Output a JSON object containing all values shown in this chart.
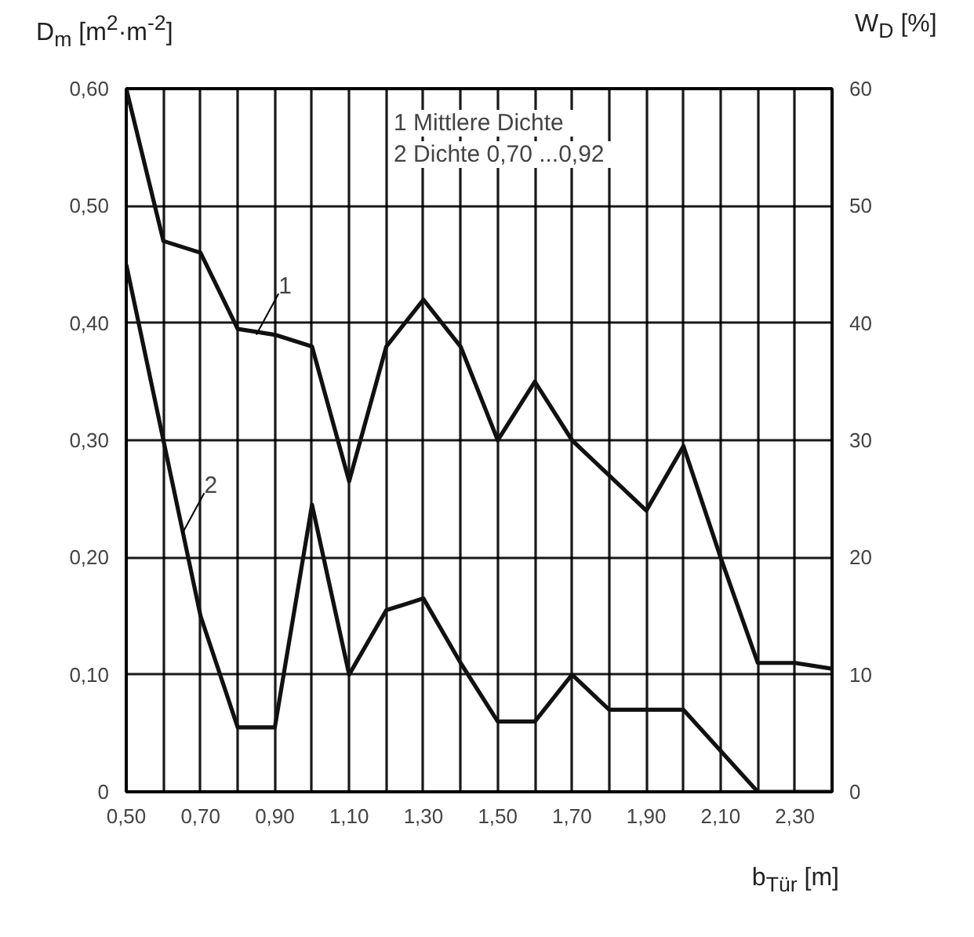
{
  "chart_data": {
    "type": "line",
    "x": [
      0.5,
      0.6,
      0.7,
      0.8,
      0.9,
      1.0,
      1.1,
      1.2,
      1.3,
      1.4,
      1.5,
      1.6,
      1.7,
      1.8,
      1.9,
      2.0,
      2.1,
      2.2,
      2.3,
      2.4
    ],
    "series": [
      {
        "color": "#111111",
        "values": [
          0.6,
          0.47,
          0.46,
          0.395,
          0.39,
          0.38,
          0.265,
          0.38,
          0.42,
          0.38,
          0.3,
          0.35,
          0.3,
          0.27,
          0.24,
          0.295,
          0.2,
          0.11,
          0.11,
          0.105
        ]
      },
      {
        "color": "#111111",
        "values": [
          0.45,
          0.3,
          0.15,
          0.055,
          0.055,
          0.245,
          0.1,
          0.155,
          0.165,
          0.11,
          0.06,
          0.06,
          0.1,
          0.07,
          0.07,
          0.07,
          0.035,
          0.0,
          0.0,
          0.0
        ]
      }
    ],
    "xlabel": "b$_{Tür}$ [m]",
    "ylabel": "D$_{m}$ [m$^{2}$·m$^{-2}$]",
    "y2label": "W$_{D}$ [%]",
    "annotations": [
      "1  Mittlere  Dichte",
      "2  Dichte  0,70 ...0,92",
      {
        "text": "1",
        "x": 0.85,
        "y": 0.39
      },
      {
        "text": "2",
        "x": 0.65,
        "y": 0.22
      }
    ],
    "xlim": [
      0.5,
      2.4
    ],
    "ylim": [
      0,
      0.6
    ],
    "y2lim": [
      0,
      60
    ],
    "xticks": [
      {
        "value": 0.5,
        "label": "0,50"
      },
      {
        "value": 0.6,
        "label": null
      },
      {
        "value": 0.7,
        "label": "0,70"
      },
      {
        "value": 0.8,
        "label": null
      },
      {
        "value": 0.9,
        "label": "0,90"
      },
      {
        "value": 1.0,
        "label": null
      },
      {
        "value": 1.1,
        "label": "1,10"
      },
      {
        "value": 1.2,
        "label": null
      },
      {
        "value": 1.3,
        "label": "1,30"
      },
      {
        "value": 1.4,
        "label": null
      },
      {
        "value": 1.5,
        "label": "1,50"
      },
      {
        "value": 1.6,
        "label": null
      },
      {
        "value": 1.7,
        "label": "1,70"
      },
      {
        "value": 1.8,
        "label": null
      },
      {
        "value": 1.9,
        "label": "1,90"
      },
      {
        "value": 2.0,
        "label": null
      },
      {
        "value": 2.1,
        "label": "2,10"
      },
      {
        "value": 2.2,
        "label": null
      },
      {
        "value": 2.3,
        "label": "2,30"
      }
    ],
    "yticks": [
      {
        "value": 0,
        "label": "0"
      },
      {
        "value": 0.1,
        "label": "0,10"
      },
      {
        "value": 0.2,
        "label": "0,20"
      },
      {
        "value": 0.3,
        "label": "0,30"
      },
      {
        "value": 0.4,
        "label": "0,40"
      },
      {
        "value": 0.5,
        "label": "0,50"
      },
      {
        "value": 0.6,
        "label": "0,60"
      }
    ],
    "y2ticks": [
      0,
      10,
      20,
      30,
      40,
      50,
      60
    ],
    "grid": true,
    "marker": "none",
    "line_style": "solid"
  }
}
